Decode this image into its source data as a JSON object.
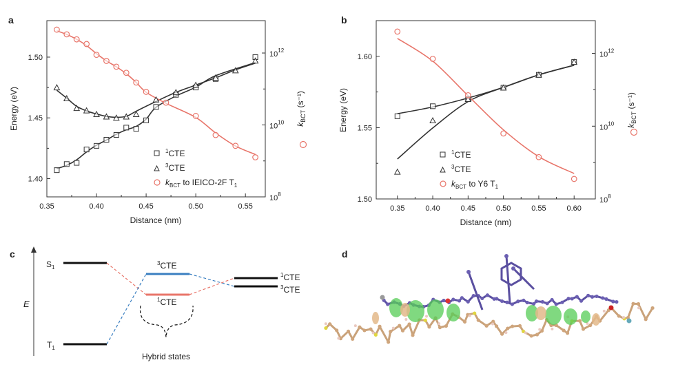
{
  "panel_labels": {
    "a": "a",
    "b": "b",
    "c": "c",
    "d": "d"
  },
  "chart_data": [
    {
      "type": "scatter",
      "panel": "a",
      "xlabel": "Distance (nm)",
      "ylabel": "Energy (eV)",
      "y2label_main": "k",
      "y2label_sub": "BCT",
      "y2label_unit": " (s⁻¹)",
      "xlim": [
        0.35,
        0.57
      ],
      "ylim": [
        1.385,
        1.53
      ],
      "xticks": [
        "0.35",
        "0.40",
        "0.45",
        "0.50",
        "0.55"
      ],
      "yticks": [
        "1.40",
        "1.45",
        "1.50"
      ],
      "y2_scale": "log",
      "y2lim": [
        8,
        12.9
      ],
      "y2ticks": [
        {
          "base": "10",
          "exp": "8"
        },
        {
          "base": "10",
          "exp": "10"
        },
        {
          "base": "10",
          "exp": "12"
        }
      ],
      "legend_placement": "bottom-right",
      "series": [
        {
          "name": "1CTE",
          "legend_sup": "1",
          "legend_main": "CTE",
          "marker": "square",
          "color": "#333333",
          "axis": "left",
          "x": [
            0.36,
            0.37,
            0.38,
            0.39,
            0.4,
            0.41,
            0.42,
            0.43,
            0.44,
            0.45,
            0.46,
            0.48,
            0.5,
            0.52,
            0.56
          ],
          "y": [
            1.407,
            1.412,
            1.413,
            1.424,
            1.427,
            1.432,
            1.436,
            1.442,
            1.441,
            1.448,
            1.459,
            1.469,
            1.475,
            1.482,
            1.5
          ]
        },
        {
          "name": "3CTE",
          "legend_sup": "3",
          "legend_main": "CTE",
          "marker": "triangle",
          "color": "#333333",
          "axis": "left",
          "x": [
            0.36,
            0.37,
            0.38,
            0.39,
            0.4,
            0.41,
            0.42,
            0.43,
            0.44,
            0.46,
            0.48,
            0.5,
            0.52,
            0.54,
            0.56
          ],
          "y": [
            1.475,
            1.466,
            1.458,
            1.456,
            1.453,
            1.451,
            1.45,
            1.451,
            1.453,
            1.465,
            1.471,
            1.477,
            1.483,
            1.489,
            1.497
          ]
        },
        {
          "name": "kBCT to IEICO-2F T1",
          "legend_main": "k",
          "legend_sub": "BCT",
          "legend_rest": " to IEICO-2F T",
          "legend_rest_sub": "1",
          "marker": "circle",
          "color": "#e8756a",
          "axis": "right",
          "x": [
            0.36,
            0.37,
            0.38,
            0.39,
            0.4,
            0.41,
            0.42,
            0.43,
            0.44,
            0.45,
            0.47,
            0.5,
            0.52,
            0.54,
            0.56
          ],
          "y": [
            12.65,
            12.52,
            12.38,
            12.25,
            11.95,
            11.78,
            11.62,
            11.45,
            11.18,
            10.92,
            10.62,
            10.25,
            9.72,
            9.42,
            9.1
          ]
        }
      ]
    },
    {
      "type": "scatter",
      "panel": "b",
      "xlabel": "Distance (nm)",
      "ylabel": "Energy (eV)",
      "y2label_main": "k",
      "y2label_sub": "BCT",
      "y2label_unit": " (s⁻¹)",
      "xlim": [
        0.32,
        0.63
      ],
      "ylim": [
        1.5,
        1.625
      ],
      "xticks": [
        "0.35",
        "0.40",
        "0.45",
        "0.50",
        "0.55",
        "0.60"
      ],
      "yticks": [
        "1.50",
        "1.55",
        "1.60"
      ],
      "y2_scale": "log",
      "y2lim": [
        8,
        12.9
      ],
      "y2ticks": [
        {
          "base": "10",
          "exp": "8"
        },
        {
          "base": "10",
          "exp": "10"
        },
        {
          "base": "10",
          "exp": "12"
        }
      ],
      "legend_placement": "bottom-right",
      "series": [
        {
          "name": "1CTE",
          "legend_sup": "1",
          "legend_main": "CTE",
          "marker": "square",
          "color": "#333333",
          "axis": "left",
          "x": [
            0.35,
            0.4,
            0.45,
            0.5,
            0.55,
            0.6
          ],
          "y": [
            1.558,
            1.565,
            1.57,
            1.578,
            1.587,
            1.596
          ]
        },
        {
          "name": "3CTE",
          "legend_sup": "3",
          "legend_main": "CTE",
          "marker": "triangle",
          "color": "#333333",
          "axis": "left",
          "x": [
            0.35,
            0.4,
            0.45,
            0.5,
            0.55,
            0.6
          ],
          "y": [
            1.519,
            1.555,
            1.57,
            1.578,
            1.587,
            1.596
          ]
        },
        {
          "name": "kBCT to Y6 T1",
          "legend_main": "k",
          "legend_sub": "BCT",
          "legend_rest": " to Y6 T",
          "legend_rest_sub": "1",
          "marker": "circle",
          "color": "#e8756a",
          "axis": "right",
          "x": [
            0.35,
            0.4,
            0.45,
            0.5,
            0.55,
            0.6
          ],
          "y": [
            12.6,
            11.85,
            10.85,
            9.8,
            9.15,
            8.55
          ]
        }
      ]
    }
  ],
  "diagram_c": {
    "axis_label": "E",
    "levels": [
      {
        "label": "S",
        "sub": "1",
        "color": "#111111"
      },
      {
        "label": "T",
        "sub": "1",
        "color": "#111111"
      },
      {
        "sup": "3",
        "label": "CTE",
        "color": "#3a7fc1"
      },
      {
        "sup": "1",
        "label": "CTE",
        "color": "#e8756a"
      },
      {
        "sup": "1",
        "label": "CTE",
        "color": "#111111"
      },
      {
        "sup": "3",
        "label": "CTE",
        "color": "#111111"
      }
    ],
    "hybrid_label": "Hybrid states"
  },
  "colors": {
    "black": "#333333",
    "red": "#e8756a",
    "blue": "#3a7fc1"
  }
}
